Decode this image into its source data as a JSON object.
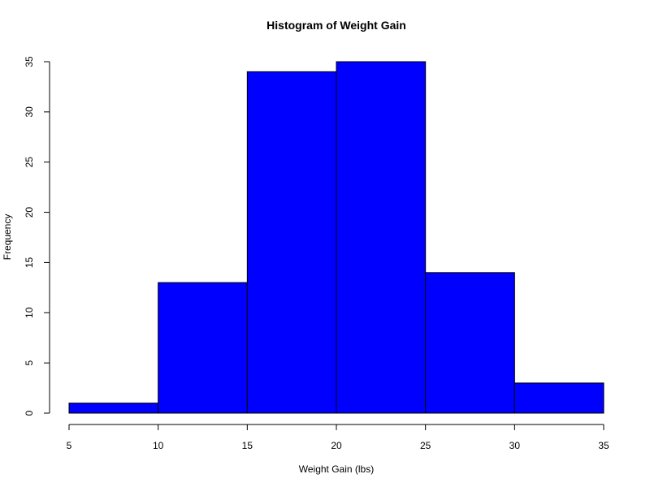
{
  "chart_data": {
    "type": "bar",
    "title": "Histogram of Weight Gain",
    "xlabel": "Weight Gain (lbs)",
    "ylabel": "Frequency",
    "bins": [
      {
        "start": 5,
        "end": 10,
        "count": 1
      },
      {
        "start": 10,
        "end": 15,
        "count": 13
      },
      {
        "start": 15,
        "end": 20,
        "count": 34
      },
      {
        "start": 20,
        "end": 25,
        "count": 35
      },
      {
        "start": 25,
        "end": 30,
        "count": 14
      },
      {
        "start": 30,
        "end": 35,
        "count": 3
      }
    ],
    "x_ticks": [
      "5",
      "10",
      "15",
      "20",
      "25",
      "30",
      "35"
    ],
    "y_ticks": [
      "0",
      "5",
      "10",
      "15",
      "20",
      "25",
      "30",
      "35"
    ],
    "xlim": [
      5,
      35
    ],
    "ylim": [
      0,
      35
    ],
    "grid": false,
    "bar_color": "#0000ff",
    "border_color": "#000000"
  }
}
